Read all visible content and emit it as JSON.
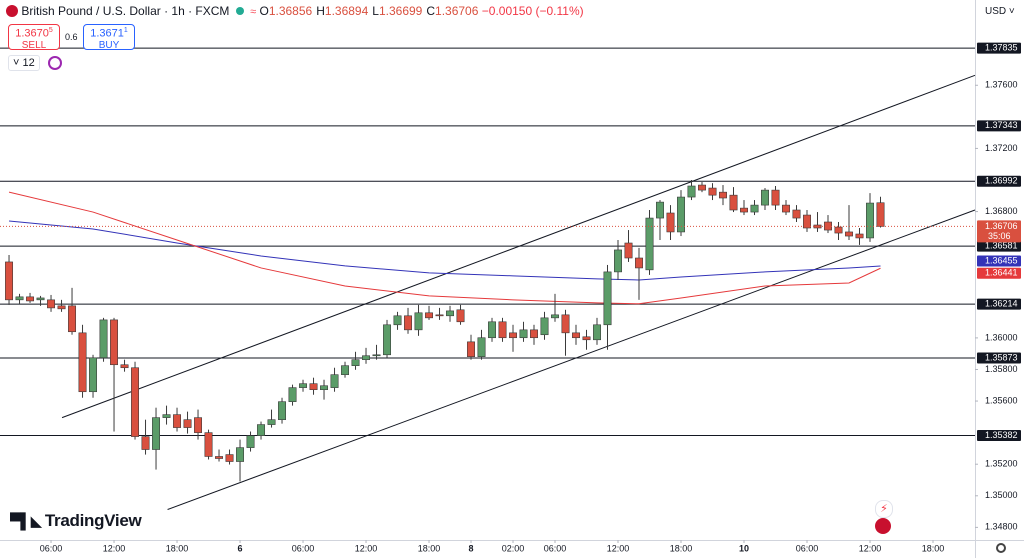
{
  "header": {
    "symbol": "British Pound / U.S. Dollar · 1h · FXCM",
    "ohlc_labels": [
      "O",
      "H",
      "L",
      "C"
    ],
    "change": "−0.00150 (−0.11%)",
    "sell": {
      "price": "1.3670",
      "pip": "5",
      "label": "SELL"
    },
    "spread": "0.6",
    "buy": {
      "price": "1.3671",
      "pip": "1",
      "label": "BUY"
    },
    "indicators": "12",
    "currency": "USD",
    "countdown": "35:06",
    "logo": "TradingView"
  },
  "chart_data": {
    "type": "candlestick",
    "up_color": "#5b9c68",
    "down_color": "#d9503f",
    "open": [
      1.36481,
      1.36241,
      1.3626,
      1.36241,
      1.36241,
      1.36203,
      1.36203,
      1.36032,
      1.35659,
      1.35874,
      1.36114,
      1.3583,
      1.35811,
      1.35375,
      1.35293,
      1.35495,
      1.35514,
      1.35482,
      1.35495,
      1.354,
      1.35249,
      1.35261,
      1.35217,
      1.35305,
      1.35381,
      1.35451,
      1.35482,
      1.35596,
      1.35685,
      1.3571,
      1.35672,
      1.35685,
      1.35767,
      1.35824,
      1.35862,
      1.35887,
      1.35893,
      1.36083,
      1.3614,
      1.36051,
      1.36159,
      1.36146,
      1.3614,
      1.36178,
      1.35975,
      1.35881,
      1.36001,
      1.36102,
      1.36032,
      1.36001,
      1.36051,
      1.3602,
      1.36127,
      1.36146,
      1.36032,
      1.36007,
      1.35988,
      1.36083,
      1.36418,
      1.36601,
      1.36506,
      1.36431,
      1.36759,
      1.36791,
      1.36671,
      1.36892,
      1.36968,
      1.36949,
      1.36923,
      1.36904,
      1.36822,
      1.36797,
      1.36841,
      1.36936,
      1.36841,
      1.3681,
      1.36778,
      1.36715,
      1.36734,
      1.36702,
      1.36671,
      1.36658,
      1.36633,
      1.36856
    ],
    "high": [
      1.36525,
      1.36279,
      1.36285,
      1.36266,
      1.36272,
      1.36241,
      1.36317,
      1.36083,
      1.35893,
      1.36127,
      1.36127,
      1.35862,
      1.35849,
      1.35482,
      1.35558,
      1.35571,
      1.35558,
      1.35533,
      1.35546,
      1.35419,
      1.35293,
      1.35293,
      1.35356,
      1.35407,
      1.3547,
      1.35546,
      1.35621,
      1.35704,
      1.35735,
      1.35748,
      1.35735,
      1.35811,
      1.35849,
      1.35912,
      1.35937,
      1.35956,
      1.36114,
      1.36165,
      1.3619,
      1.36209,
      1.36203,
      1.3619,
      1.36203,
      1.36209,
      1.3602,
      1.36051,
      1.36127,
      1.36127,
      1.36083,
      1.36102,
      1.36083,
      1.36165,
      1.36279,
      1.36178,
      1.36083,
      1.36051,
      1.36127,
      1.36462,
      1.3662,
      1.36683,
      1.3657,
      1.3681,
      1.36873,
      1.36841,
      1.36936,
      1.37,
      1.36987,
      1.3698,
      1.36968,
      1.36955,
      1.36873,
      1.36873,
      1.36949,
      1.36962,
      1.36873,
      1.36841,
      1.3681,
      1.36797,
      1.36778,
      1.36734,
      1.36841,
      1.36696,
      1.36917,
      1.36894
    ],
    "low": [
      1.36209,
      1.36216,
      1.36222,
      1.36203,
      1.36165,
      1.36165,
      1.3602,
      1.35621,
      1.35621,
      1.35849,
      1.35407,
      1.35786,
      1.35356,
      1.35261,
      1.35166,
      1.35451,
      1.35407,
      1.35394,
      1.35356,
      1.3523,
      1.35217,
      1.35198,
      1.35091,
      1.3528,
      1.35356,
      1.35432,
      1.35457,
      1.35571,
      1.35659,
      1.3564,
      1.35609,
      1.35659,
      1.35748,
      1.35798,
      1.35836,
      1.35862,
      1.35874,
      1.36051,
      1.36026,
      1.36013,
      1.36114,
      1.36114,
      1.36102,
      1.36083,
      1.35862,
      1.35862,
      1.35975,
      1.35975,
      1.35912,
      1.35975,
      1.35956,
      1.35988,
      1.36102,
      1.35887,
      1.35956,
      1.35925,
      1.35956,
      1.35925,
      1.36367,
      1.36481,
      1.36241,
      1.36399,
      1.3662,
      1.3662,
      1.36645,
      1.36873,
      1.36923,
      1.36873,
      1.36841,
      1.36797,
      1.36778,
      1.36778,
      1.3681,
      1.3681,
      1.36778,
      1.36734,
      1.36671,
      1.36671,
      1.36664,
      1.3662,
      1.3662,
      1.36589,
      1.36608,
      1.36699
    ],
    "close": [
      1.36241,
      1.3626,
      1.36234,
      1.36253,
      1.3619,
      1.36184,
      1.36039,
      1.35659,
      1.35874,
      1.36114,
      1.3583,
      1.35811,
      1.35375,
      1.35293,
      1.35495,
      1.35514,
      1.35432,
      1.35432,
      1.354,
      1.35249,
      1.35236,
      1.35217,
      1.35305,
      1.35381,
      1.35451,
      1.35482,
      1.35596,
      1.35685,
      1.3571,
      1.35672,
      1.35697,
      1.35767,
      1.35824,
      1.35862,
      1.35887,
      1.35893,
      1.36083,
      1.3614,
      1.36051,
      1.36159,
      1.36127,
      1.3614,
      1.36171,
      1.36102,
      1.35881,
      1.36001,
      1.36102,
      1.36001,
      1.36001,
      1.36051,
      1.36001,
      1.36127,
      1.36146,
      1.36032,
      1.36001,
      1.35988,
      1.36083,
      1.36418,
      1.36557,
      1.36506,
      1.36443,
      1.36759,
      1.3686,
      1.36671,
      1.36892,
      1.36962,
      1.36936,
      1.36904,
      1.36886,
      1.3681,
      1.36797,
      1.36841,
      1.36936,
      1.36841,
      1.36797,
      1.36759,
      1.36696,
      1.36696,
      1.36683,
      1.36664,
      1.36645,
      1.36633,
      1.36854,
      1.36706
    ],
    "xlim": [
      -0.86,
      92
    ],
    "xticks": [
      {
        "value": 4,
        "label": "06:00"
      },
      {
        "value": 10,
        "label": "12:00"
      },
      {
        "value": 16,
        "label": "18:00"
      },
      {
        "value": 22,
        "label": "6"
      },
      {
        "value": 28,
        "label": "06:00"
      },
      {
        "value": 34,
        "label": "12:00"
      },
      {
        "value": 40,
        "label": "18:00"
      },
      {
        "value": 44,
        "label": "8"
      },
      {
        "value": 48,
        "label": "02:00"
      },
      {
        "value": 52,
        "label": "06:00"
      },
      {
        "value": 58,
        "label": "12:00"
      },
      {
        "value": 64,
        "label": "18:00"
      },
      {
        "value": 70,
        "label": "10"
      },
      {
        "value": 76,
        "label": "06:00"
      },
      {
        "value": 82,
        "label": "12:00"
      },
      {
        "value": 88,
        "label": "18:00"
      }
    ],
    "ylim": [
      1.3472,
      1.3814
    ],
    "yticks": [
      {
        "value": 1.376,
        "label": "1.37600"
      },
      {
        "value": 1.372,
        "label": "1.37200"
      },
      {
        "value": 1.368,
        "label": "1.36800"
      },
      {
        "value": 1.36,
        "label": "1.36000"
      },
      {
        "value": 1.358,
        "label": "1.35800"
      },
      {
        "value": 1.356,
        "label": "1.35600"
      },
      {
        "value": 1.352,
        "label": "1.35200"
      },
      {
        "value": 1.35,
        "label": "1.35000"
      },
      {
        "value": 1.348,
        "label": "1.34800"
      }
    ],
    "grid": false,
    "levels": [
      1.37835,
      1.37343,
      1.36992,
      1.36581,
      1.36214,
      1.35873,
      1.35382
    ],
    "moving_averages": [
      {
        "color": "#3333b8",
        "x": [
          0,
          8,
          16,
          24,
          32,
          40,
          48,
          56,
          60,
          64,
          72,
          80,
          83
        ],
        "values": [
          1.3674,
          1.3669,
          1.36601,
          1.36519,
          1.36456,
          1.36412,
          1.36393,
          1.36374,
          1.36367,
          1.36386,
          1.36418,
          1.36443,
          1.36455
        ]
      },
      {
        "color": "#e5393b",
        "x": [
          0,
          8,
          16,
          24,
          32,
          40,
          48,
          56,
          60,
          64,
          72,
          80,
          83
        ],
        "values": [
          1.36923,
          1.36797,
          1.3662,
          1.36443,
          1.36329,
          1.36266,
          1.36241,
          1.36222,
          1.36216,
          1.36253,
          1.36329,
          1.36348,
          1.36441
        ]
      }
    ],
    "trendlines": [
      {
        "x": [
          5.05,
          92
        ],
        "values": [
          1.35495,
          1.37663
        ]
      },
      {
        "x": [
          15.1,
          92
        ],
        "values": [
          1.34913,
          1.3681
        ]
      }
    ]
  }
}
